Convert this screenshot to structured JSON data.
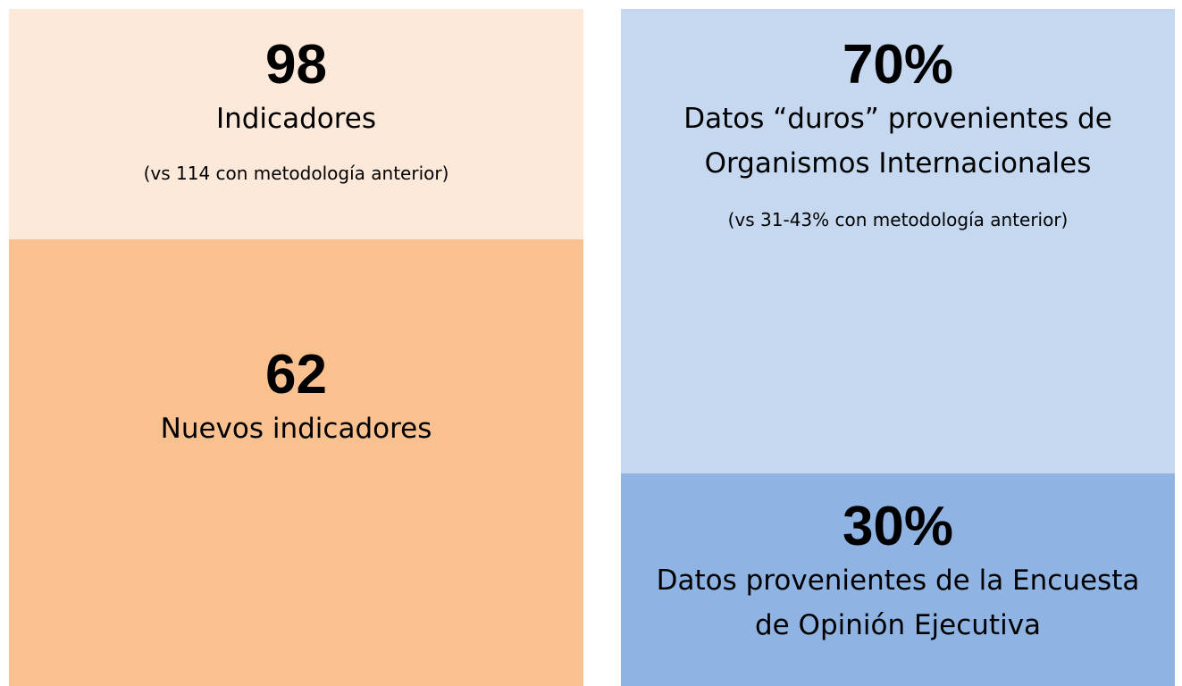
{
  "panels": [
    {
      "blocks": [
        {
          "figure": "98",
          "label": [
            "Indicadores"
          ],
          "note": "(vs 114 con metodología anterior)"
        },
        {
          "figure": "62",
          "label": [
            "Nuevos indicadores"
          ]
        }
      ]
    },
    {
      "blocks": [
        {
          "figure": "70%",
          "label": [
            "Datos “duros” provenientes de",
            "Organismos Internacionales"
          ],
          "note": "(vs 31-43% con metodología anterior)"
        },
        {
          "figure": "30%",
          "label": [
            "Datos provenientes de la Encuesta",
            "de Opinión Ejecutiva"
          ]
        }
      ]
    }
  ]
}
